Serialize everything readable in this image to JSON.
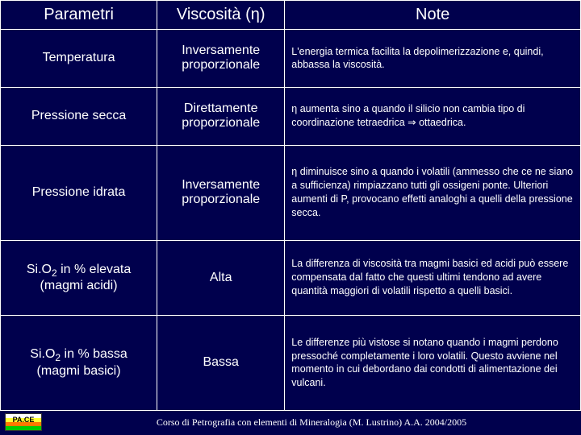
{
  "table": {
    "headers": {
      "col1": "Parametri",
      "col2": "Viscosità (η)",
      "col3": "Note"
    },
    "rows": [
      {
        "param": "Temperatura",
        "visc": "Inversamente proporzionale",
        "note": "L'energia termica facilita la depolimerizzazione e, quindi, abbassa la viscosità."
      },
      {
        "param": "Pressione secca",
        "visc": "Direttamente proporzionale",
        "note": "η  aumenta sino a quando il silicio non cambia tipo di coordinazione tetraedrica ⇒ ottaedrica."
      },
      {
        "param": "Pressione idrata",
        "visc": "Inversamente proporzionale",
        "note": "η diminuisce sino a quando i volatili (ammesso che ce ne siano a sufficienza) rimpiazzano tutti gli ossigeni ponte. Ulteriori aumenti di P, provocano effetti analoghi a quelli della pressione secca."
      },
      {
        "param_html": "Si.O<span class='sub'>2</span> in % elevata (magmi acidi)",
        "visc": "Alta",
        "note": "La differenza di viscosità tra magmi basici ed acidi può essere compensata dal fatto che questi ultimi tendono ad avere quantità maggiori di volatili rispetto a quelli basici."
      },
      {
        "param_html": "Si.O<span class='sub'>2</span> in % bassa (magmi basici)",
        "visc": "Bassa",
        "note": "Le differenze più vistose si notano quando i magmi perdono pressoché completamente i loro volatili. Questo avviene nel momento in cui debordano dai condotti di alimentazione dei vulcani."
      }
    ]
  },
  "footer": {
    "pace_label": "PA.CE",
    "text": "Corso di Petrografia con elementi di Mineralogia (M. Lustrino) A.A. 2004/2005"
  },
  "colors": {
    "background": "#00004d",
    "border": "#ffffff",
    "text": "#ffffff"
  }
}
